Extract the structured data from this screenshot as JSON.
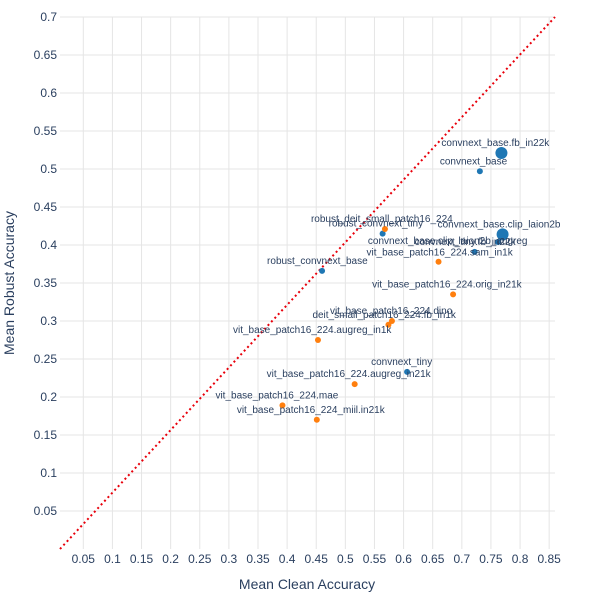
{
  "chart_data": {
    "type": "scatter",
    "xlabel": "Mean Clean Accuracy",
    "ylabel": "Mean Robust Accuracy",
    "xlim": [
      0.01,
      0.86
    ],
    "ylim": [
      0.0,
      0.7
    ],
    "x_ticks": [
      "0.05",
      "0.1",
      "0.15",
      "0.2",
      "0.25",
      "0.3",
      "0.35",
      "0.4",
      "0.45",
      "0.5",
      "0.55",
      "0.6",
      "0.65",
      "0.7",
      "0.75",
      "0.8",
      "0.85"
    ],
    "y_ticks": [
      "0.05",
      "0.1",
      "0.15",
      "0.2",
      "0.25",
      "0.3",
      "0.35",
      "0.4",
      "0.45",
      "0.5",
      "0.55",
      "0.6",
      "0.65",
      "0.7"
    ],
    "grid": true,
    "diagonal": {
      "from": [
        0.01,
        0.0
      ],
      "to": [
        0.86,
        0.7
      ],
      "color": "#e8000b",
      "style": "dotted"
    },
    "colors": {
      "convnext": "#1f77b4",
      "vit": "#ff7f0e"
    },
    "points": [
      {
        "label": "convnext_base.fb_in22k",
        "x": 0.768,
        "y": 0.521,
        "group": "convnext",
        "size": "large"
      },
      {
        "label": "convnext_base",
        "x": 0.731,
        "y": 0.497,
        "group": "convnext",
        "size": "small"
      },
      {
        "label": "convnext_base.clip_laion2b",
        "x": 0.77,
        "y": 0.414,
        "group": "convnext",
        "size": "large"
      },
      {
        "label": "convnext_base.clip_laion2b_augreg",
        "x": 0.762,
        "y": 0.404,
        "group": "convnext",
        "size": "small"
      },
      {
        "label": "convnext_tiny.fb_in22k",
        "x": 0.722,
        "y": 0.391,
        "group": "convnext",
        "size": "small"
      },
      {
        "label": "robust_convnext_tiny",
        "x": 0.564,
        "y": 0.415,
        "group": "convnext",
        "size": "small"
      },
      {
        "label": "robust_convnext_base",
        "x": 0.46,
        "y": 0.366,
        "group": "convnext",
        "size": "small"
      },
      {
        "label": "convnext_tiny",
        "x": 0.606,
        "y": 0.233,
        "group": "convnext",
        "size": "small"
      },
      {
        "label": "robust_deit_small_patch16_224",
        "x": 0.568,
        "y": 0.421,
        "group": "vit",
        "size": "small"
      },
      {
        "label": "vit_base_patch16_224.sam_in1k",
        "x": 0.66,
        "y": 0.378,
        "group": "vit",
        "size": "small"
      },
      {
        "label": "vit_base_patch16_224.orig_in21k",
        "x": 0.685,
        "y": 0.335,
        "group": "vit",
        "size": "small"
      },
      {
        "label": "vit_base_patch16_224.dino",
        "x": 0.58,
        "y": 0.3,
        "group": "vit",
        "size": "small"
      },
      {
        "label": "deit_small_patch16_224.fb_in1k",
        "x": 0.574,
        "y": 0.295,
        "group": "vit",
        "size": "small"
      },
      {
        "label": "vit_base_patch16_224.augreg_in1k",
        "x": 0.453,
        "y": 0.275,
        "group": "vit",
        "size": "small"
      },
      {
        "label": "vit_base_patch16_224.augreg_in21k",
        "x": 0.516,
        "y": 0.217,
        "group": "vit",
        "size": "small"
      },
      {
        "label": "vit_base_patch16_224.mae",
        "x": 0.392,
        "y": 0.189,
        "group": "vit",
        "size": "small"
      },
      {
        "label": "vit_base_patch16_224_miil.in21k",
        "x": 0.451,
        "y": 0.17,
        "group": "vit",
        "size": "small"
      }
    ]
  }
}
